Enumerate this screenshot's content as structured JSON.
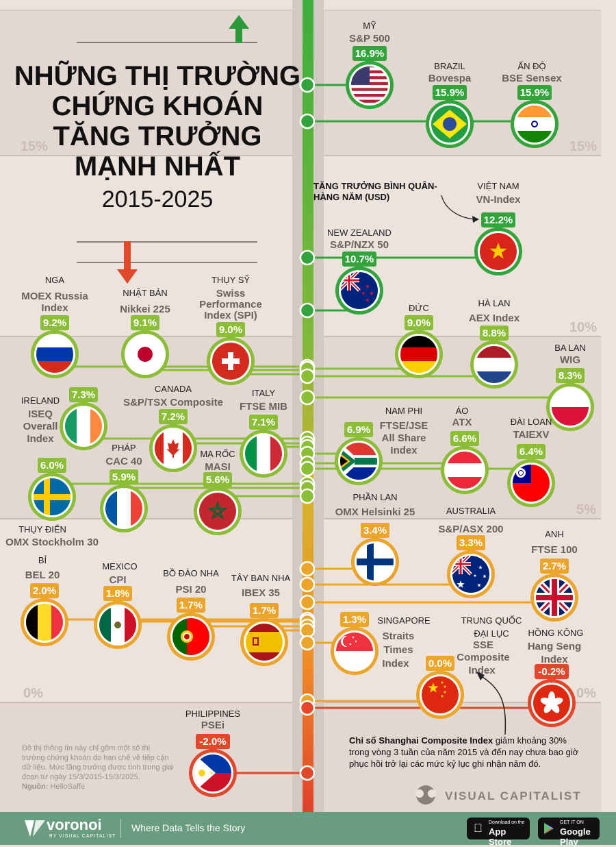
{
  "header": {
    "title_lines": [
      "NHỮNG THỊ TRƯỜNG",
      "CHỨNG KHOÁN",
      "TĂNG TRƯỞNG",
      "MẠNH NHẤT"
    ],
    "years": "2015-2025"
  },
  "chart_data": {
    "type": "scatter",
    "title": "NHỮNG THỊ TRƯỜNG CHỨNG KHOÁN TĂNG TRƯỞNG MẠNH NHẤT 2015-2025",
    "axis_label": "TĂNG TRƯỞNG BÌNH QUÂN HÀNG NĂM (USD)",
    "gridlines": [
      "15%",
      "10%",
      "5%",
      "0%"
    ],
    "ylim": [
      -2.5,
      17.5
    ],
    "markets": [
      {
        "country": "MỸ",
        "index": "S&P 500",
        "value": 16.9,
        "label": "16.9%",
        "flag": "us"
      },
      {
        "country": "BRAZIL",
        "index": "Bovespa",
        "value": 15.9,
        "label": "15.9%",
        "flag": "br"
      },
      {
        "country": "ẤN ĐỘ",
        "index": "BSE Sensex",
        "value": 15.9,
        "label": "15.9%",
        "flag": "in"
      },
      {
        "country": "VIỆT NAM",
        "index": "VN-Index",
        "value": 12.2,
        "label": "12.2%",
        "flag": "vn"
      },
      {
        "country": "NEW ZEALAND",
        "index": "S&P/NZX 50",
        "value": 10.7,
        "label": "10.7%",
        "flag": "nz"
      },
      {
        "country": "NGA",
        "index": "MOEX Russia Index",
        "value": 9.2,
        "label": "9.2%",
        "flag": "ru"
      },
      {
        "country": "NHẬT BẢN",
        "index": "Nikkei 225",
        "value": 9.1,
        "label": "9.1%",
        "flag": "jp"
      },
      {
        "country": "THỤY SỸ",
        "index": "Swiss Performance Index (SPI)",
        "value": 9.0,
        "label": "9.0%",
        "flag": "ch"
      },
      {
        "country": "ĐỨC",
        "index": "",
        "value": 9.0,
        "label": "9.0%",
        "flag": "de"
      },
      {
        "country": "HÀ LAN",
        "index": "AEX Index",
        "value": 8.8,
        "label": "8.8%",
        "flag": "nl"
      },
      {
        "country": "BA LAN",
        "index": "WIG",
        "value": 8.3,
        "label": "8.3%",
        "flag": "pl"
      },
      {
        "country": "IRELAND",
        "index": "ISEQ Overall Index",
        "value": 7.3,
        "label": "7.3%",
        "flag": "ie"
      },
      {
        "country": "CANADA",
        "index": "S&P/TSX Composite",
        "value": 7.2,
        "label": "7.2%",
        "flag": "ca"
      },
      {
        "country": "ITALY",
        "index": "FTSE MIB",
        "value": 7.1,
        "label": "7.1%",
        "flag": "it"
      },
      {
        "country": "NAM PHI",
        "index": "FTSE/JSE All Share Index",
        "value": 6.9,
        "label": "6.9%",
        "flag": "za"
      },
      {
        "country": "ÁO",
        "index": "ATX",
        "value": 6.6,
        "label": "6.6%",
        "flag": "at"
      },
      {
        "country": "ĐÀI LOAN",
        "index": "TAIEXV",
        "value": 6.4,
        "label": "6.4%",
        "flag": "tw"
      },
      {
        "country": "THỤY ĐIỂN",
        "index": "OMX Stockholm 30",
        "value": 6.0,
        "label": "6.0%",
        "flag": "se"
      },
      {
        "country": "PHÁP",
        "index": "CAC 40",
        "value": 5.9,
        "label": "5.9%",
        "flag": "fr"
      },
      {
        "country": "MA RỐC",
        "index": "MASI",
        "value": 5.6,
        "label": "5.6%",
        "flag": "ma"
      },
      {
        "country": "PHẦN LAN",
        "index": "OMX Helsinki 25",
        "value": 3.4,
        "label": "3.4%",
        "flag": "fi"
      },
      {
        "country": "AUSTRALIA",
        "index": "S&P/ASX 200",
        "value": 3.3,
        "label": "3.3%",
        "flag": "au"
      },
      {
        "country": "ANH",
        "index": "FTSE 100",
        "value": 2.7,
        "label": "2.7%",
        "flag": "gb"
      },
      {
        "country": "BỈ",
        "index": "BEL 20",
        "value": 2.0,
        "label": "2.0%",
        "flag": "be"
      },
      {
        "country": "MEXICO",
        "index": "CPI",
        "value": 1.8,
        "label": "1.8%",
        "flag": "mx"
      },
      {
        "country": "BỒ ĐÀO NHA",
        "index": "PSI 20",
        "value": 1.7,
        "label": "1.7%",
        "flag": "pt"
      },
      {
        "country": "TÂY BAN NHA",
        "index": "IBEX 35",
        "value": 1.7,
        "label": "1.7%",
        "flag": "es"
      },
      {
        "country": "SINGAPORE",
        "index": "Straits Times Index",
        "value": 1.3,
        "label": "1.3%",
        "flag": "sg"
      },
      {
        "country": "TRUNG QUỐC ĐẠI LỤC",
        "index": "SSE Composite Index",
        "value": 0.0,
        "label": "0.0%",
        "flag": "cn"
      },
      {
        "country": "HỒNG KÔNG",
        "index": "Hang Seng Index",
        "value": -0.2,
        "label": "-0.2%",
        "flag": "hk"
      },
      {
        "country": "PHILIPPINES",
        "index": "PSEi",
        "value": -2.0,
        "label": "-2.0%",
        "flag": "ph"
      }
    ]
  },
  "annotation": {
    "bold": "Chỉ số Shanghai Composite Index",
    "rest_lines": [
      " giảm khoảng 30%",
      "trong vòng 3 tuần của năm 2015 và đến nay chưa bao giờ",
      "phục hồi trở lại các mức kỷ lục ghi nhận năm đó."
    ]
  },
  "note": {
    "lines": [
      "Đồ thị thông tin này chỉ gồm một số thị",
      "trường chứng khoán do hạn chế về tiếp cận",
      "dữ liệu. Mức tăng trưởng được tính trong giai",
      "đoạn từ ngày 15/3/2015-15/3/2025."
    ],
    "source_label": "Nguồn:",
    "source": " HelloSaffe"
  },
  "brand": {
    "publisher": "VISUAL CAPITALIST",
    "voronoi": "voronoi",
    "voronoi_by": "BY VISUAL CAPITALIST",
    "tagline": "Where Data Tells the Story",
    "appstore_small": "Download on the",
    "appstore": "App Store",
    "googleplay_small": "GET IT ON",
    "googleplay": "Google Play"
  }
}
